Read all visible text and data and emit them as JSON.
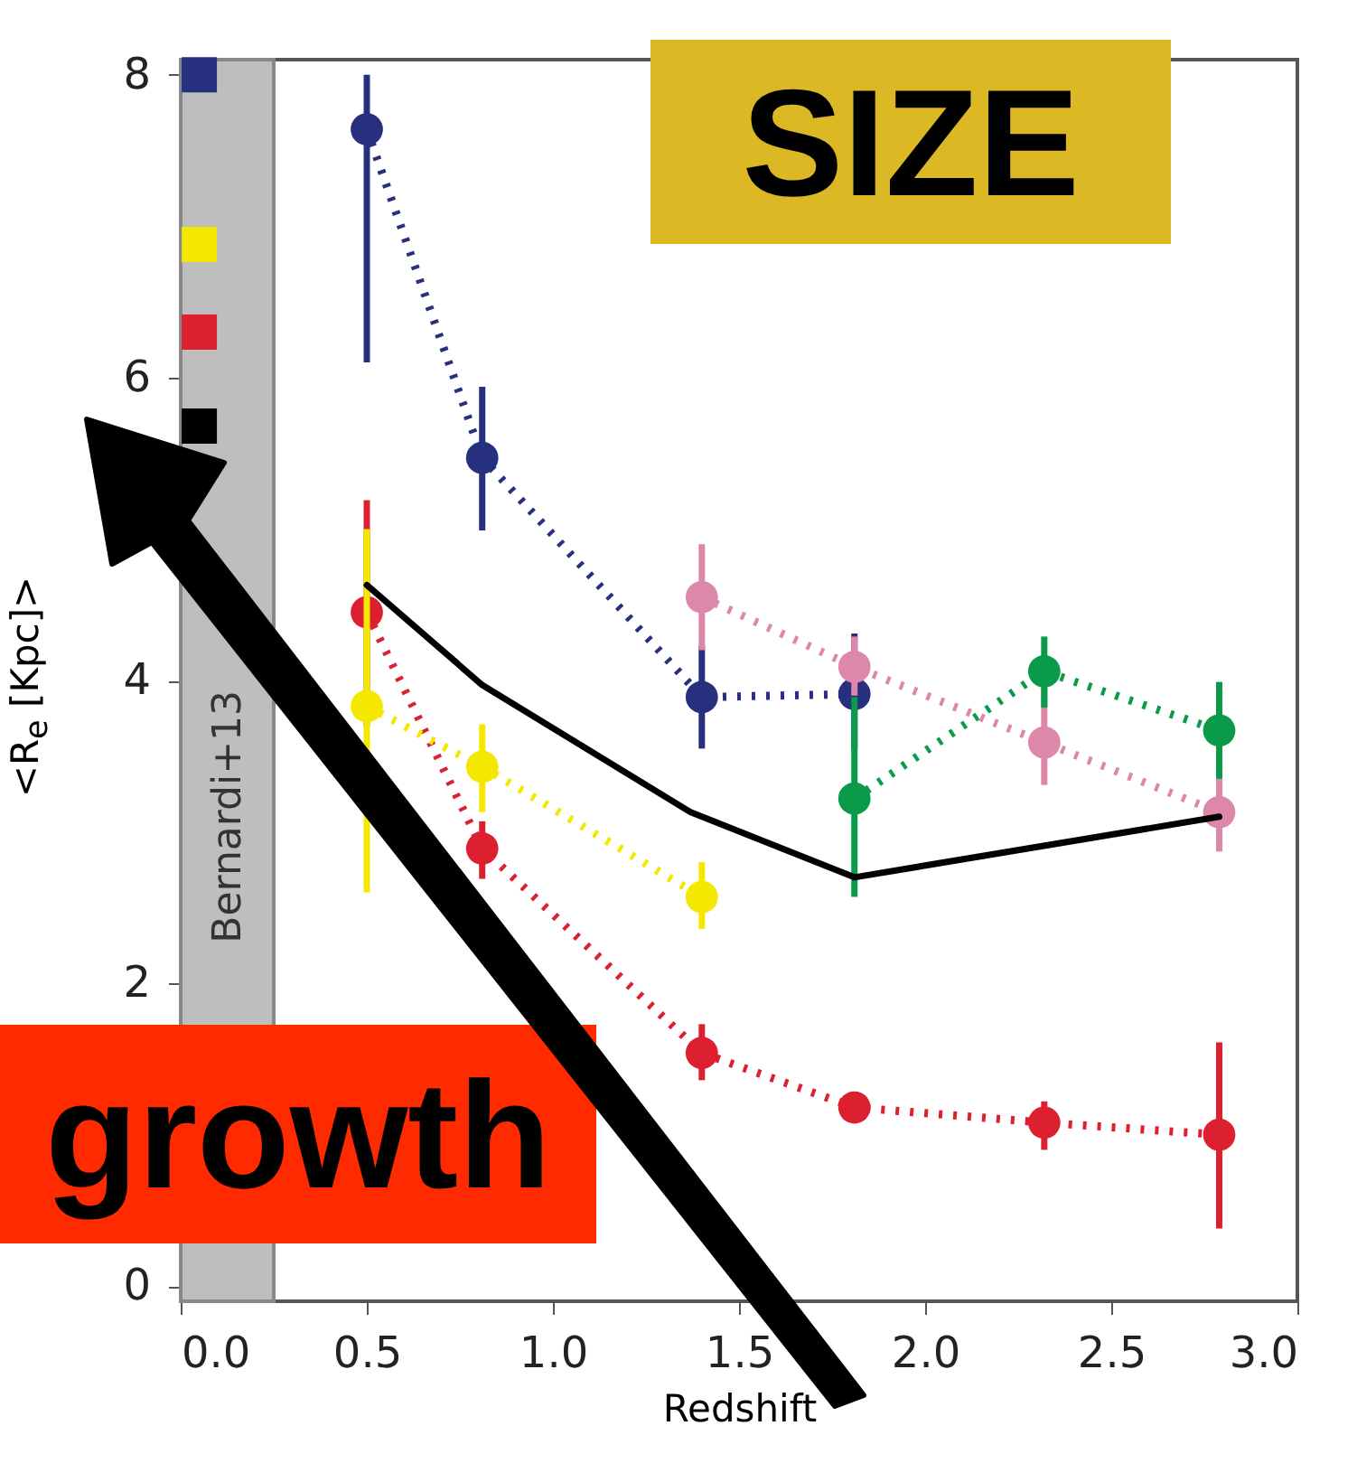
{
  "chart_data": {
    "type": "line",
    "xlabel": "Redshift",
    "ylabel": "<R$_{e}$ [Kpc]>",
    "xlim": [
      0,
      3
    ],
    "xticks": [
      {
        "value": 0,
        "label": "0.0"
      },
      {
        "value": 0.5,
        "label": "0.5"
      },
      {
        "value": 1,
        "label": "1.0"
      },
      {
        "value": 1.5,
        "label": "1.5"
      },
      {
        "value": 2,
        "label": "2.0"
      },
      {
        "value": 2.5,
        "label": "2.5"
      },
      {
        "value": 3,
        "label": "3.0"
      }
    ],
    "ylim": [
      -0.1,
      8.1
    ],
    "yticks": [
      0,
      2,
      4,
      6,
      8
    ],
    "bands": [
      {
        "axis": "x",
        "from": 0,
        "to": 0.25,
        "label": "Bernardi+13",
        "color": "#bebebe"
      }
    ],
    "annotations": [
      "SIZE",
      "growth"
    ],
    "series": [
      {
        "color": "#27307f",
        "line_style": "dotted",
        "marker": "circle",
        "x": [
          0.5,
          0.81,
          1.4,
          1.81
        ],
        "values": [
          7.64,
          5.47,
          3.89,
          3.91
        ],
        "errors": [
          [
            6.1,
            8.0
          ],
          [
            4.99,
            5.94
          ],
          [
            3.55,
            4.23
          ],
          [
            3.55,
            4.31
          ]
        ]
      },
      {
        "color": "#dd88aa",
        "line_style": "dotted",
        "marker": "circle",
        "x": [
          1.4,
          1.81,
          2.32,
          2.79
        ],
        "values": [
          4.55,
          4.09,
          3.59,
          3.13
        ],
        "errors": [
          [
            4.2,
            4.9
          ],
          [
            3.9,
            4.29
          ],
          [
            3.31,
            3.95
          ],
          [
            2.87,
            3.35
          ]
        ]
      },
      {
        "color": "#0a9a4a",
        "line_style": "dotted",
        "marker": "circle",
        "x": [
          1.81,
          2.32,
          2.79
        ],
        "values": [
          3.22,
          4.06,
          3.67
        ],
        "errors": [
          [
            2.57,
            3.89
          ],
          [
            3.82,
            4.29
          ],
          [
            3.35,
            3.99
          ]
        ]
      },
      {
        "color": "#dd2030",
        "line_style": "dotted",
        "marker": "circle",
        "x": [
          0.5,
          0.81,
          1.4,
          1.81,
          2.32,
          2.79
        ],
        "values": [
          4.45,
          2.89,
          1.54,
          1.18,
          1.08,
          1.0
        ],
        "errors": [
          [
            3.7,
            5.19
          ],
          [
            2.69,
            3.07
          ],
          [
            1.36,
            1.73
          ],
          null,
          [
            0.9,
            1.22
          ],
          [
            0.38,
            1.61
          ]
        ]
      },
      {
        "color": "#f5e800",
        "line_style": "dotted",
        "marker": "circle",
        "x": [
          0.5,
          0.81,
          1.4
        ],
        "values": [
          3.83,
          3.43,
          2.57
        ],
        "errors": [
          [
            2.6,
            5.0
          ],
          [
            3.13,
            3.71
          ],
          [
            2.36,
            2.8
          ]
        ]
      },
      {
        "color": "#000000",
        "line_style": "solid",
        "marker": "none",
        "x": [
          0.5,
          0.81,
          1.37,
          1.81,
          2.79
        ],
        "values": [
          4.63,
          3.97,
          3.13,
          2.7,
          3.1
        ]
      },
      {
        "type": "scatter",
        "marker": "square",
        "x": [
          0.05,
          0.05,
          0.05,
          0.05
        ],
        "values": [
          8.0,
          6.88,
          6.3,
          5.68
        ],
        "colors": [
          "#27307f",
          "#f5e800",
          "#dd2030",
          "#000000"
        ]
      }
    ]
  }
}
